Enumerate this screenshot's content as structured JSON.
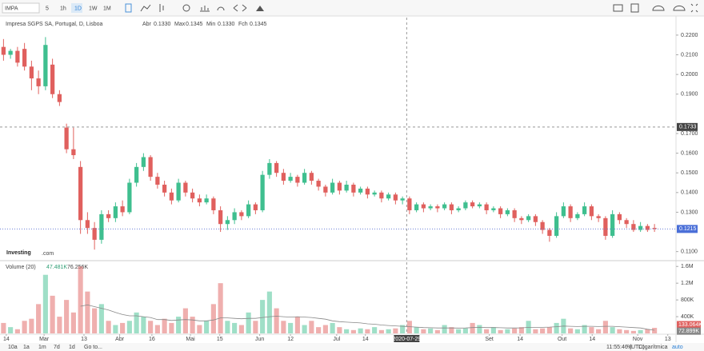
{
  "toolbar": {
    "symbol": "IMPA",
    "intervals": [
      "5",
      "1h",
      "1D",
      "1W",
      "1M"
    ]
  },
  "chart_data": {
    "type": "candlestick",
    "title": "Impresa SGPS SA, Portugal, D, Lisboa",
    "legend": [
      {
        "label": "Abr",
        "value": "0.1330"
      },
      {
        "label": "Max",
        "value": "0.1345"
      },
      {
        "label": "Min",
        "value": "0.1330"
      },
      {
        "label": "Fch",
        "value": "0.1345"
      }
    ],
    "up_color": "#3fbf8f",
    "down_color": "#e0605e",
    "ohlc": [
      [
        0.214,
        0.218,
        0.207,
        0.21
      ],
      [
        0.21,
        0.213,
        0.208,
        0.212
      ],
      [
        0.212,
        0.214,
        0.204,
        0.206
      ],
      [
        0.213,
        0.216,
        0.202,
        0.204
      ],
      [
        0.204,
        0.207,
        0.192,
        0.198
      ],
      [
        0.198,
        0.202,
        0.19,
        0.194
      ],
      [
        0.194,
        0.219,
        0.192,
        0.215
      ],
      [
        0.205,
        0.208,
        0.188,
        0.19
      ],
      [
        0.19,
        0.192,
        0.184,
        0.186
      ],
      [
        0.173,
        0.175,
        0.16,
        0.162
      ],
      [
        0.162,
        0.173,
        0.157,
        0.159
      ],
      [
        0.153,
        0.156,
        0.119,
        0.126
      ],
      [
        0.126,
        0.13,
        0.119,
        0.122
      ],
      [
        0.122,
        0.125,
        0.111,
        0.116
      ],
      [
        0.116,
        0.131,
        0.114,
        0.129
      ],
      [
        0.129,
        0.131,
        0.125,
        0.127
      ],
      [
        0.127,
        0.135,
        0.125,
        0.133
      ],
      [
        0.133,
        0.136,
        0.128,
        0.13
      ],
      [
        0.13,
        0.147,
        0.129,
        0.145
      ],
      [
        0.145,
        0.155,
        0.143,
        0.153
      ],
      [
        0.153,
        0.16,
        0.151,
        0.158
      ],
      [
        0.158,
        0.159,
        0.146,
        0.148
      ],
      [
        0.148,
        0.15,
        0.142,
        0.144
      ],
      [
        0.144,
        0.146,
        0.138,
        0.14
      ],
      [
        0.14,
        0.142,
        0.134,
        0.136
      ],
      [
        0.136,
        0.147,
        0.135,
        0.145
      ],
      [
        0.145,
        0.146,
        0.138,
        0.14
      ],
      [
        0.14,
        0.142,
        0.135,
        0.137
      ],
      [
        0.137,
        0.139,
        0.133,
        0.135
      ],
      [
        0.135,
        0.139,
        0.134,
        0.137
      ],
      [
        0.137,
        0.138,
        0.129,
        0.131
      ],
      [
        0.131,
        0.133,
        0.12,
        0.124
      ],
      [
        0.124,
        0.128,
        0.121,
        0.126
      ],
      [
        0.126,
        0.132,
        0.124,
        0.13
      ],
      [
        0.13,
        0.131,
        0.126,
        0.128
      ],
      [
        0.128,
        0.136,
        0.127,
        0.134
      ],
      [
        0.134,
        0.135,
        0.129,
        0.131
      ],
      [
        0.131,
        0.151,
        0.13,
        0.149
      ],
      [
        0.149,
        0.157,
        0.147,
        0.155
      ],
      [
        0.155,
        0.156,
        0.148,
        0.15
      ],
      [
        0.15,
        0.152,
        0.144,
        0.146
      ],
      [
        0.146,
        0.15,
        0.145,
        0.148
      ],
      [
        0.148,
        0.149,
        0.143,
        0.145
      ],
      [
        0.145,
        0.152,
        0.144,
        0.15
      ],
      [
        0.15,
        0.151,
        0.144,
        0.146
      ],
      [
        0.146,
        0.147,
        0.141,
        0.143
      ],
      [
        0.143,
        0.144,
        0.138,
        0.14
      ],
      [
        0.14,
        0.147,
        0.139,
        0.145
      ],
      [
        0.145,
        0.146,
        0.139,
        0.141
      ],
      [
        0.141,
        0.146,
        0.14,
        0.144
      ],
      [
        0.144,
        0.145,
        0.138,
        0.14
      ],
      [
        0.14,
        0.143,
        0.139,
        0.142
      ],
      [
        0.142,
        0.143,
        0.137,
        0.139
      ],
      [
        0.139,
        0.141,
        0.138,
        0.14
      ],
      [
        0.14,
        0.141,
        0.135,
        0.137
      ],
      [
        0.137,
        0.14,
        0.136,
        0.139
      ],
      [
        0.139,
        0.14,
        0.134,
        0.136
      ],
      [
        0.136,
        0.138,
        0.134,
        0.137
      ],
      [
        0.137,
        0.138,
        0.129,
        0.131
      ],
      [
        0.131,
        0.135,
        0.13,
        0.134
      ],
      [
        0.134,
        0.135,
        0.13,
        0.132
      ],
      [
        0.132,
        0.134,
        0.131,
        0.133
      ],
      [
        0.133,
        0.134,
        0.13,
        0.132
      ],
      [
        0.132,
        0.135,
        0.131,
        0.134
      ],
      [
        0.134,
        0.135,
        0.129,
        0.131
      ],
      [
        0.131,
        0.133,
        0.13,
        0.132
      ],
      [
        0.132,
        0.136,
        0.131,
        0.135
      ],
      [
        0.135,
        0.136,
        0.132,
        0.133
      ],
      [
        0.133,
        0.135,
        0.132,
        0.134
      ],
      [
        0.134,
        0.135,
        0.129,
        0.131
      ],
      [
        0.131,
        0.133,
        0.13,
        0.132
      ],
      [
        0.132,
        0.133,
        0.127,
        0.129
      ],
      [
        0.129,
        0.132,
        0.128,
        0.131
      ],
      [
        0.131,
        0.132,
        0.125,
        0.127
      ],
      [
        0.127,
        0.128,
        0.124,
        0.126
      ],
      [
        0.126,
        0.129,
        0.125,
        0.128
      ],
      [
        0.128,
        0.129,
        0.123,
        0.125
      ],
      [
        0.125,
        0.126,
        0.119,
        0.121
      ],
      [
        0.121,
        0.122,
        0.115,
        0.118
      ],
      [
        0.118,
        0.13,
        0.117,
        0.128
      ],
      [
        0.128,
        0.135,
        0.127,
        0.133
      ],
      [
        0.133,
        0.134,
        0.125,
        0.127
      ],
      [
        0.127,
        0.13,
        0.126,
        0.129
      ],
      [
        0.129,
        0.135,
        0.128,
        0.133
      ],
      [
        0.133,
        0.134,
        0.126,
        0.128
      ],
      [
        0.128,
        0.129,
        0.125,
        0.127
      ],
      [
        0.127,
        0.128,
        0.116,
        0.118
      ],
      [
        0.118,
        0.131,
        0.117,
        0.129
      ],
      [
        0.129,
        0.13,
        0.124,
        0.126
      ],
      [
        0.126,
        0.127,
        0.122,
        0.124
      ],
      [
        0.124,
        0.126,
        0.12,
        0.121
      ],
      [
        0.121,
        0.125,
        0.12,
        0.123
      ],
      [
        0.123,
        0.124,
        0.12,
        0.121
      ],
      [
        0.122,
        0.124,
        0.12,
        0.1215
      ]
    ],
    "volume_title": "Volume (20)",
    "volume_legend": [
      "47.481K",
      "76.256K"
    ],
    "volume": [
      250000,
      150000,
      100000,
      300000,
      350000,
      700000,
      1400000,
      900000,
      400000,
      800000,
      500000,
      1600000,
      1000000,
      600000,
      700000,
      300000,
      200000,
      250000,
      300000,
      500000,
      400000,
      300000,
      200000,
      350000,
      250000,
      400000,
      600000,
      400000,
      200000,
      300000,
      700000,
      1200000,
      300000,
      250000,
      200000,
      500000,
      300000,
      800000,
      1000000,
      600000,
      300000,
      250000,
      400000,
      200000,
      300000,
      150000,
      200000,
      250000,
      150000,
      100000,
      80000,
      120000,
      100000,
      150000,
      80000,
      100000,
      120000,
      200000,
      300000,
      150000,
      100000,
      120000,
      80000,
      200000,
      150000,
      100000,
      120000,
      250000,
      200000,
      100000,
      150000,
      80000,
      100000,
      120000,
      150000,
      300000,
      100000,
      120000,
      150000,
      250000,
      350000,
      120000,
      100000,
      200000,
      150000,
      100000,
      300000,
      150000,
      100000,
      80000,
      60000,
      80000,
      100000,
      133064
    ],
    "volume_ma": [
      null,
      null,
      null,
      null,
      null,
      null,
      null,
      null,
      null,
      null,
      null,
      650000,
      680000,
      640000,
      600000,
      560000,
      500000,
      450000,
      420000,
      420000,
      400000,
      380000,
      330000,
      330000,
      310000,
      320000,
      330000,
      320000,
      300000,
      300000,
      320000,
      370000,
      370000,
      360000,
      350000,
      360000,
      360000,
      380000,
      400000,
      410000,
      400000,
      390000,
      400000,
      390000,
      380000,
      360000,
      340000,
      300000,
      280000,
      270000,
      260000,
      250000,
      230000,
      220000,
      200000,
      190000,
      180000,
      170000,
      160000,
      150000,
      140000,
      135000,
      130000,
      130000,
      130000,
      128000,
      130000,
      140000,
      145000,
      140000,
      140000,
      135000,
      130000,
      130000,
      132000,
      145000,
      145000,
      145000,
      150000,
      160000,
      175000,
      170000,
      165000,
      170000,
      170000,
      165000,
      170000,
      170000,
      160000,
      150000,
      140000,
      130000,
      100000,
      76256
    ],
    "ylim": [
      0.1058,
      0.2289
    ],
    "yticks": [
      {
        "value": 0.22,
        "label": "0.2200"
      },
      {
        "value": 0.21,
        "label": "0.2100"
      },
      {
        "value": 0.2,
        "label": "0.2000"
      },
      {
        "value": 0.19,
        "label": "0.1900"
      },
      {
        "value": 0.17,
        "label": "0.1700"
      },
      {
        "value": 0.16,
        "label": "0.1600"
      },
      {
        "value": 0.15,
        "label": "0.1500"
      },
      {
        "value": 0.14,
        "label": "0.1400"
      },
      {
        "value": 0.13,
        "label": "0.1300"
      },
      {
        "value": 0.11,
        "label": "0.1100"
      }
    ],
    "y2lim": [
      0,
      1700000
    ],
    "y2ticks": [
      {
        "value": 1600000,
        "label": "1.6M"
      },
      {
        "value": 1200000,
        "label": "1.2M"
      },
      {
        "value": 800000,
        "label": "800K"
      },
      {
        "value": 400000,
        "label": "400K"
      }
    ],
    "xlim": [
      -0.5,
      95.5
    ],
    "xticks": [
      {
        "value": 0.4,
        "label": "14"
      },
      {
        "value": 5.8,
        "label": "Mar"
      },
      {
        "value": 11.5,
        "label": "13"
      },
      {
        "value": 16.6,
        "label": "Abr"
      },
      {
        "value": 21.2,
        "label": "16"
      },
      {
        "value": 26.7,
        "label": "Mai"
      },
      {
        "value": 30.9,
        "label": "15"
      },
      {
        "value": 36.6,
        "label": "Jun"
      },
      {
        "value": 41,
        "label": "12"
      },
      {
        "value": 47.6,
        "label": "Jul"
      },
      {
        "value": 51.7,
        "label": "14"
      },
      {
        "value": 69.4,
        "label": "Set"
      },
      {
        "value": 73.8,
        "label": "14"
      },
      {
        "value": 79.8,
        "label": "Out"
      },
      {
        "value": 84.1,
        "label": "14"
      },
      {
        "value": 90.6,
        "label": "Nov"
      },
      {
        "value": 94.9,
        "label": "13"
      }
    ],
    "crosshair_x": {
      "value": 57.6,
      "label": "2020-07-29"
    },
    "crosshair_price": 0.1733,
    "last_price": 0.1215,
    "volume_markers": [
      {
        "value": 133064,
        "label": "133.064K"
      },
      {
        "value": 72899,
        "label": "72.899K"
      }
    ]
  },
  "logo": {
    "brand": "Investing",
    "suffix": ".com"
  },
  "footer": {
    "ranges": [
      "10a",
      "1a",
      "1m",
      "7d",
      "1d"
    ],
    "goto": "Go to...",
    "time": "11:55:46 (UTC)",
    "percent": "%",
    "log": "Logarítmica",
    "auto": "auto"
  }
}
